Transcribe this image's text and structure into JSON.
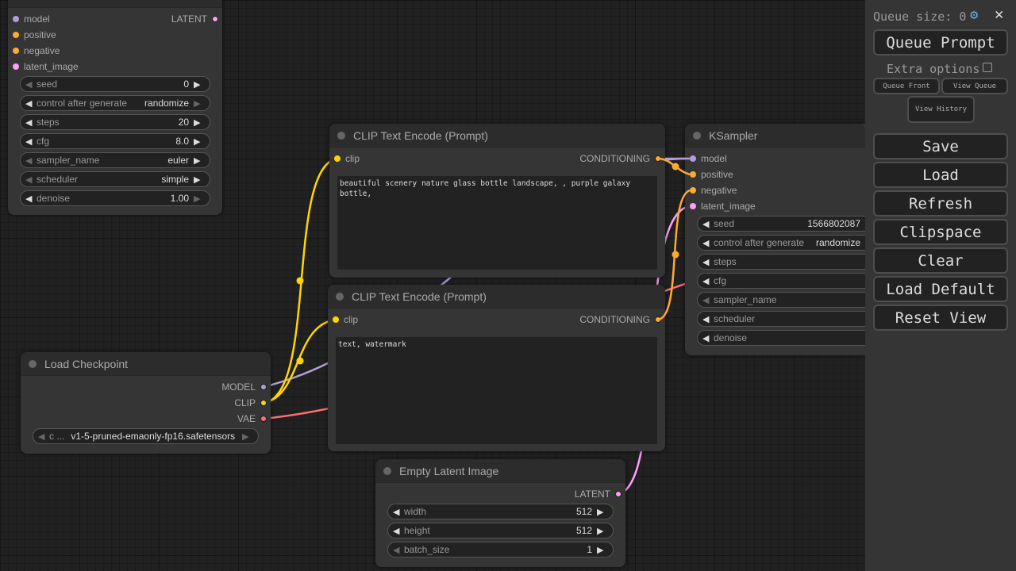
{
  "colors": {
    "model": "#b39ddb",
    "conditioning": "#ffa931",
    "latent": "#ff9cf9",
    "clip": "#ffd500",
    "vae": "#ff6e6e"
  },
  "ksampler_left": {
    "inputs": [
      "model",
      "positive",
      "negative",
      "latent_image"
    ],
    "output": "LATENT",
    "widgets": [
      {
        "label": "seed",
        "value": "0"
      },
      {
        "label": "control after generate",
        "value": "randomize"
      },
      {
        "label": "steps",
        "value": "20"
      },
      {
        "label": "cfg",
        "value": "8.0"
      },
      {
        "label": "sampler_name",
        "value": "euler"
      },
      {
        "label": "scheduler",
        "value": "simple"
      },
      {
        "label": "denoise",
        "value": "1.00"
      }
    ]
  },
  "clip_pos": {
    "title": "CLIP Text Encode (Prompt)",
    "input": "clip",
    "output": "CONDITIONING",
    "text": "beautiful scenery nature glass bottle landscape, , purple galaxy bottle,"
  },
  "clip_neg": {
    "title": "CLIP Text Encode (Prompt)",
    "input": "clip",
    "output": "CONDITIONING",
    "text": "text, watermark"
  },
  "checkpoint": {
    "title": "Load Checkpoint",
    "outputs": [
      "MODEL",
      "CLIP",
      "VAE"
    ],
    "widget": {
      "label": "c ...",
      "value": "v1-5-pruned-emaonly-fp16.safetensors"
    }
  },
  "latent": {
    "title": "Empty Latent Image",
    "output": "LATENT",
    "widgets": [
      {
        "label": "width",
        "value": "512"
      },
      {
        "label": "height",
        "value": "512"
      },
      {
        "label": "batch_size",
        "value": "1"
      }
    ]
  },
  "ksampler": {
    "title": "KSampler",
    "inputs": [
      "model",
      "positive",
      "negative",
      "latent_image"
    ],
    "widgets": [
      {
        "label": "seed",
        "value": "1566802087"
      },
      {
        "label": "control after generate",
        "value": "randomize"
      },
      {
        "label": "steps",
        "value": ""
      },
      {
        "label": "cfg",
        "value": ""
      },
      {
        "label": "sampler_name",
        "value": ""
      },
      {
        "label": "scheduler",
        "value": ""
      },
      {
        "label": "denoise",
        "value": ""
      }
    ]
  },
  "panel": {
    "queue_size": "Queue size: 0",
    "queue_prompt": "Queue Prompt",
    "extra_options": "Extra options",
    "queue_front": "Queue Front",
    "view_queue": "View Queue",
    "view_history": "View History",
    "buttons": [
      "Save",
      "Load",
      "Refresh",
      "Clipspace",
      "Clear",
      "Load Default",
      "Reset View"
    ]
  }
}
